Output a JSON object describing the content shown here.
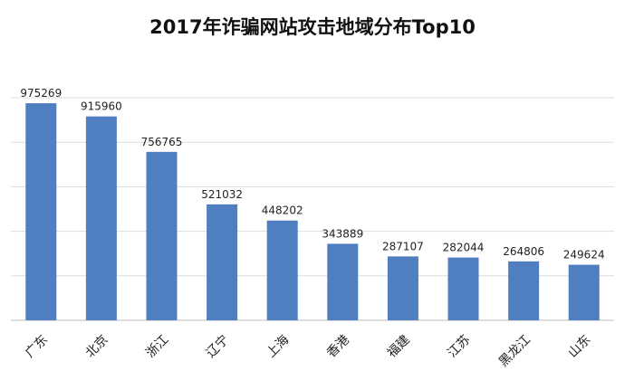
{
  "chart_data": {
    "type": "bar",
    "title": "2017年诈骗网站攻击地域分布Top10",
    "categories": [
      "广东",
      "北京",
      "浙江",
      "辽宁",
      "上海",
      "香港",
      "福建",
      "江苏",
      "黑龙江",
      "山东"
    ],
    "values": [
      975269,
      915960,
      756765,
      521032,
      448202,
      343889,
      287107,
      282044,
      264806,
      249624
    ],
    "ylim": [
      0,
      1000000
    ],
    "grid": true,
    "bar_color": "#4f7ec1",
    "data_labels": true
  }
}
